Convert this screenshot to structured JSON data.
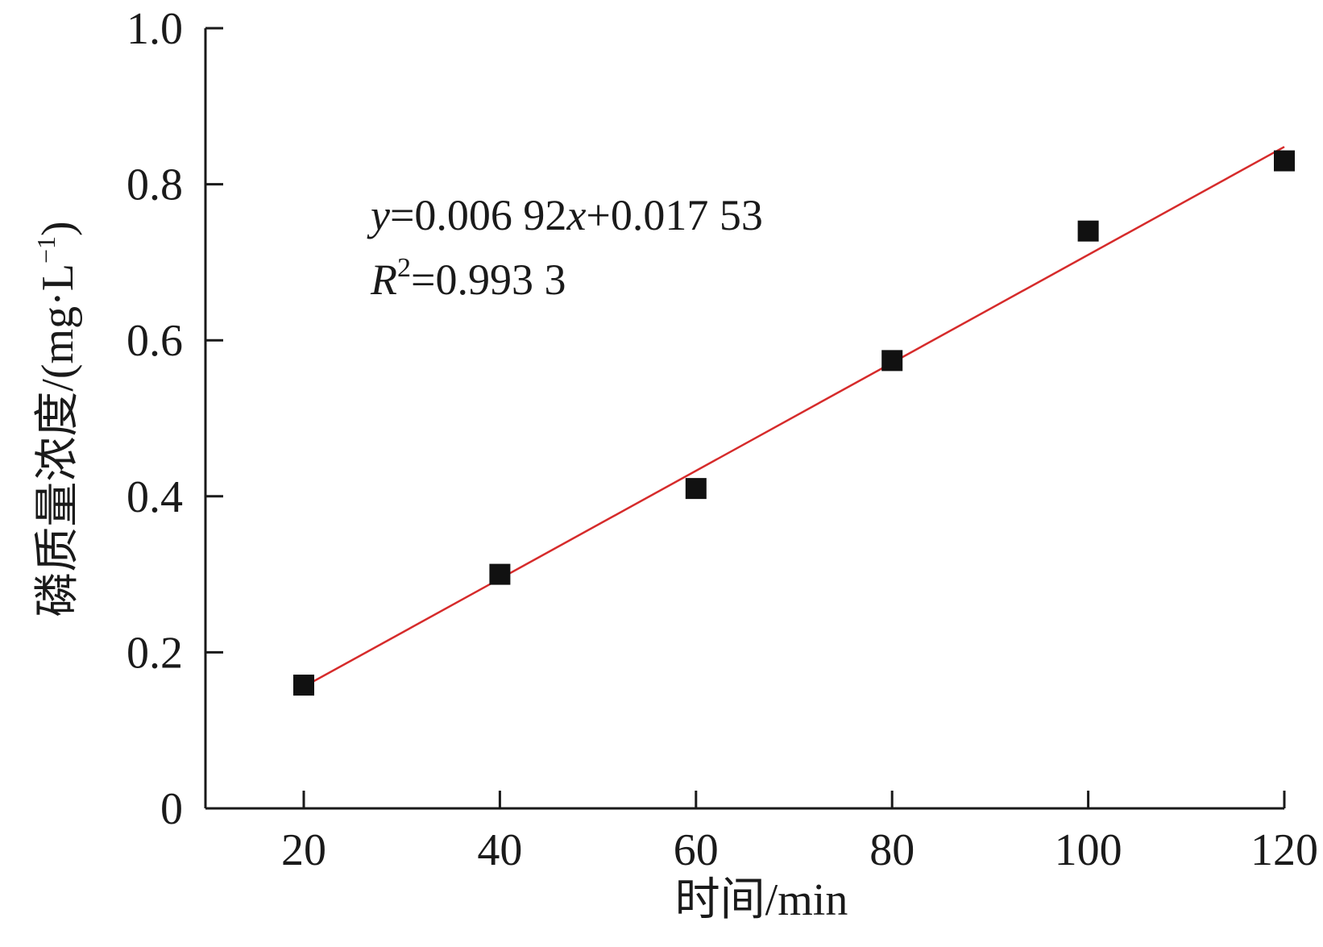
{
  "chart_data": {
    "type": "scatter",
    "xlabel": "时间/min",
    "ylabel": "磷质量浓度/(mg·L",
    "ylabel_superscript": "−1",
    "ylabel_suffix": ")",
    "xlim": [
      10,
      120
    ],
    "ylim": [
      0,
      1.0
    ],
    "x_ticks": [
      20,
      40,
      60,
      80,
      100,
      120
    ],
    "y_ticks": [
      0,
      0.2,
      0.4,
      0.6,
      0.8,
      1.0
    ],
    "y_tick_labels": [
      "0",
      "0.2",
      "0.4",
      "0.6",
      "0.8",
      "1.0"
    ],
    "x_tick_labels": [
      "20",
      "40",
      "60",
      "80",
      "100",
      "120"
    ],
    "series": [
      {
        "marker": "square",
        "color": "#111111",
        "x": [
          20,
          40,
          60,
          80,
          100,
          120
        ],
        "y": [
          0.158,
          0.3,
          0.41,
          0.574,
          0.74,
          0.83
        ]
      }
    ],
    "fit": {
      "color": "#d62b2b",
      "slope": 0.00692,
      "intercept": 0.01753,
      "x_range": [
        20,
        120
      ],
      "equation": {
        "y_var": "y",
        "eq_mid": "=0.006 92",
        "x_var": "x",
        "eq_tail": "+0.017 53"
      },
      "r2": {
        "var": "R",
        "sup": "2",
        "value": "=0.993 3"
      }
    },
    "grid": false
  }
}
